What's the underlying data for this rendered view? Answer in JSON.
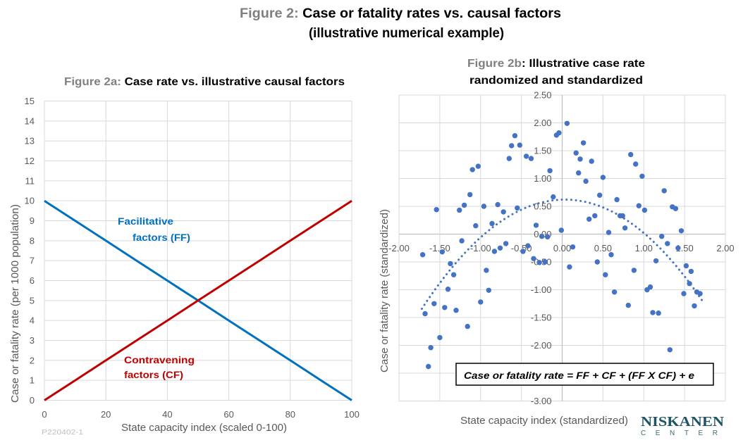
{
  "header": {
    "figure_label": "Figure 2:",
    "title_line1": " Case or fatality rates vs. causal factors",
    "title_line2": "(illustrative numerical example)"
  },
  "footer": {
    "code": "P220402-1",
    "logo_main": "NISKANEN",
    "logo_sub": "CENTER"
  },
  "chart_data": [
    {
      "id": "figure-2a",
      "type": "line",
      "title_prefix": "Figure 2a:",
      "title": " Case rate vs. illustrative causal factors",
      "xlabel": "State capacity index (scaled 0-100)",
      "ylabel": "Case or fatality rate (per 1000 population)",
      "xlim": [
        0,
        100
      ],
      "ylim": [
        0,
        15
      ],
      "xticks": [
        0,
        20,
        40,
        60,
        80,
        100
      ],
      "yticks": [
        0,
        1,
        2,
        3,
        4,
        5,
        6,
        7,
        8,
        9,
        10,
        11,
        12,
        13,
        14,
        15
      ],
      "grid": true,
      "legend": "inline labels next to lines",
      "series": [
        {
          "name": "Facilitative factors (FF)",
          "label_lines": [
            "Facilitative",
            "factors (FF)"
          ],
          "color": "#0070C0",
          "x": [
            0,
            10,
            20,
            30,
            40,
            50,
            60,
            70,
            80,
            90,
            100
          ],
          "y": [
            10,
            9,
            8,
            7,
            6,
            5,
            4,
            3,
            2,
            1,
            0
          ]
        },
        {
          "name": "Contravening factors (CF)",
          "label_lines": [
            "Contravening",
            "factors (CF)"
          ],
          "color": "#C00000",
          "x": [
            0,
            10,
            20,
            30,
            40,
            50,
            60,
            70,
            80,
            90,
            100
          ],
          "y": [
            0,
            1,
            2,
            3,
            4,
            5,
            6,
            7,
            8,
            9,
            10
          ]
        }
      ]
    },
    {
      "id": "figure-2b",
      "type": "scatter",
      "title_prefix": "Figure 2b",
      "title_lines": [
        ": Illustrative case rate",
        "randomized and standardized"
      ],
      "xlabel": "State capacity index (standardized)",
      "ylabel": "Case or fatality rate (standardized)",
      "xlim": [
        -2,
        2
      ],
      "ylim": [
        -3,
        2.5
      ],
      "xticks": [
        -2,
        -1.5,
        -1,
        -0.5,
        0,
        0.5,
        1,
        1.5,
        2
      ],
      "xtick_labels": [
        "-2.00",
        "-1.50",
        "-1.00",
        "-0.50",
        "0.00",
        "0.50",
        "1.00",
        "1.50",
        "2.00"
      ],
      "yticks": [
        2.5,
        2,
        1.5,
        1,
        0.5,
        0,
        -0.5,
        -1,
        -1.5,
        -2,
        -2.5,
        -3
      ],
      "ytick_labels": [
        "2.50",
        "2.00",
        "1.50",
        "1.00",
        "0.50",
        "0.00",
        "-0.50",
        "-1.00",
        "-1.50",
        "-2.00",
        "-2.50",
        "-3.00"
      ],
      "grid": true,
      "marker_color": "#4472C4",
      "points": [
        [
          0.06,
          1.99
        ],
        [
          -0.07,
          1.78
        ],
        [
          -0.04,
          1.82
        ],
        [
          -0.58,
          1.77
        ],
        [
          -0.62,
          1.59
        ],
        [
          -0.52,
          1.6
        ],
        [
          -0.65,
          1.36
        ],
        [
          -0.44,
          1.4
        ],
        [
          -0.38,
          1.36
        ],
        [
          -1.03,
          1.22
        ],
        [
          -1.1,
          1.16
        ],
        [
          -0.15,
          1.14
        ],
        [
          -1.13,
          0.71
        ],
        [
          -0.11,
          0.67
        ],
        [
          -1.54,
          0.44
        ],
        [
          -1.26,
          0.43
        ],
        [
          -1.2,
          0.52
        ],
        [
          -0.96,
          0.5
        ],
        [
          -0.79,
          0.53
        ],
        [
          -0.72,
          0.4
        ],
        [
          -0.55,
          0.47
        ],
        [
          -1.06,
          0.15
        ],
        [
          -0.86,
          0.19
        ],
        [
          -0.32,
          0.16
        ],
        [
          -0.01,
          0.07
        ],
        [
          -0.25,
          -0.04
        ],
        [
          -0.18,
          -0.05
        ],
        [
          -1.23,
          -0.12
        ],
        [
          -0.69,
          -0.17
        ],
        [
          -0.76,
          -0.25
        ],
        [
          -0.42,
          -0.21
        ],
        [
          -0.83,
          -0.31
        ],
        [
          -0.48,
          -0.31
        ],
        [
          -1.47,
          -0.32
        ],
        [
          -1.71,
          -0.37
        ],
        [
          0.26,
          1.64
        ],
        [
          0.17,
          1.46
        ],
        [
          0.22,
          1.35
        ],
        [
          0.36,
          1.31
        ],
        [
          0.2,
          1.1
        ],
        [
          0.29,
          0.95
        ],
        [
          0.5,
          1.02
        ],
        [
          0.84,
          1.43
        ],
        [
          0.9,
          1.26
        ],
        [
          0.98,
          1.04
        ],
        [
          0.46,
          0.7
        ],
        [
          0.67,
          0.62
        ],
        [
          0.94,
          0.51
        ],
        [
          1.01,
          0.43
        ],
        [
          1.25,
          0.78
        ],
        [
          1.35,
          0.49
        ],
        [
          1.39,
          0.46
        ],
        [
          0.71,
          0.33
        ],
        [
          0.74,
          0.33
        ],
        [
          0.4,
          0.33
        ],
        [
          0.33,
          0.27
        ],
        [
          0.77,
          0.11
        ],
        [
          0.57,
          0.03
        ],
        [
          1.46,
          0.06
        ],
        [
          1.22,
          -0.04
        ],
        [
          1.29,
          -0.17
        ],
        [
          0.13,
          -0.23
        ],
        [
          1.42,
          -0.25
        ],
        [
          -0.35,
          -0.44
        ],
        [
          -0.28,
          -0.51
        ],
        [
          -0.21,
          -0.5
        ],
        [
          0.09,
          -0.59
        ],
        [
          -1.37,
          -0.53
        ],
        [
          -1.33,
          -0.73
        ],
        [
          -0.93,
          -0.65
        ],
        [
          -1.4,
          -0.99
        ],
        [
          -0.9,
          -1.01
        ],
        [
          -1.0,
          -1.22
        ],
        [
          -1.57,
          -1.25
        ],
        [
          -1.44,
          -1.32
        ],
        [
          -1.3,
          -1.37
        ],
        [
          -1.68,
          -1.43
        ],
        [
          -1.16,
          -1.66
        ],
        [
          -1.5,
          -1.86
        ],
        [
          -1.61,
          -2.04
        ],
        [
          -1.64,
          -2.38
        ],
        [
          0.43,
          -0.5
        ],
        [
          0.6,
          -0.37
        ],
        [
          0.53,
          -0.73
        ],
        [
          0.64,
          -1.04
        ],
        [
          0.88,
          -0.65
        ],
        [
          0.81,
          -1.28
        ],
        [
          1.04,
          -1.0
        ],
        [
          1.08,
          -0.95
        ],
        [
          1.15,
          -0.48
        ],
        [
          1.11,
          -1.41
        ],
        [
          1.18,
          -1.42
        ],
        [
          1.32,
          -2.08
        ],
        [
          1.52,
          -0.57
        ],
        [
          1.58,
          -0.67
        ],
        [
          1.56,
          -0.89
        ],
        [
          1.49,
          -1.07
        ],
        [
          1.65,
          -1.04
        ],
        [
          1.69,
          -1.07
        ],
        [
          1.62,
          -1.29
        ]
      ],
      "trendline": {
        "type": "polynomial",
        "order": 2,
        "intercept": 0.62,
        "linear": 0.04,
        "quadratic": -0.64,
        "x_range": [
          -1.72,
          1.72
        ],
        "style": "dotted",
        "color": "#4472C4"
      },
      "annotation": "Case or fatality rate = FF + CF + (FF X CF) + e"
    }
  ]
}
